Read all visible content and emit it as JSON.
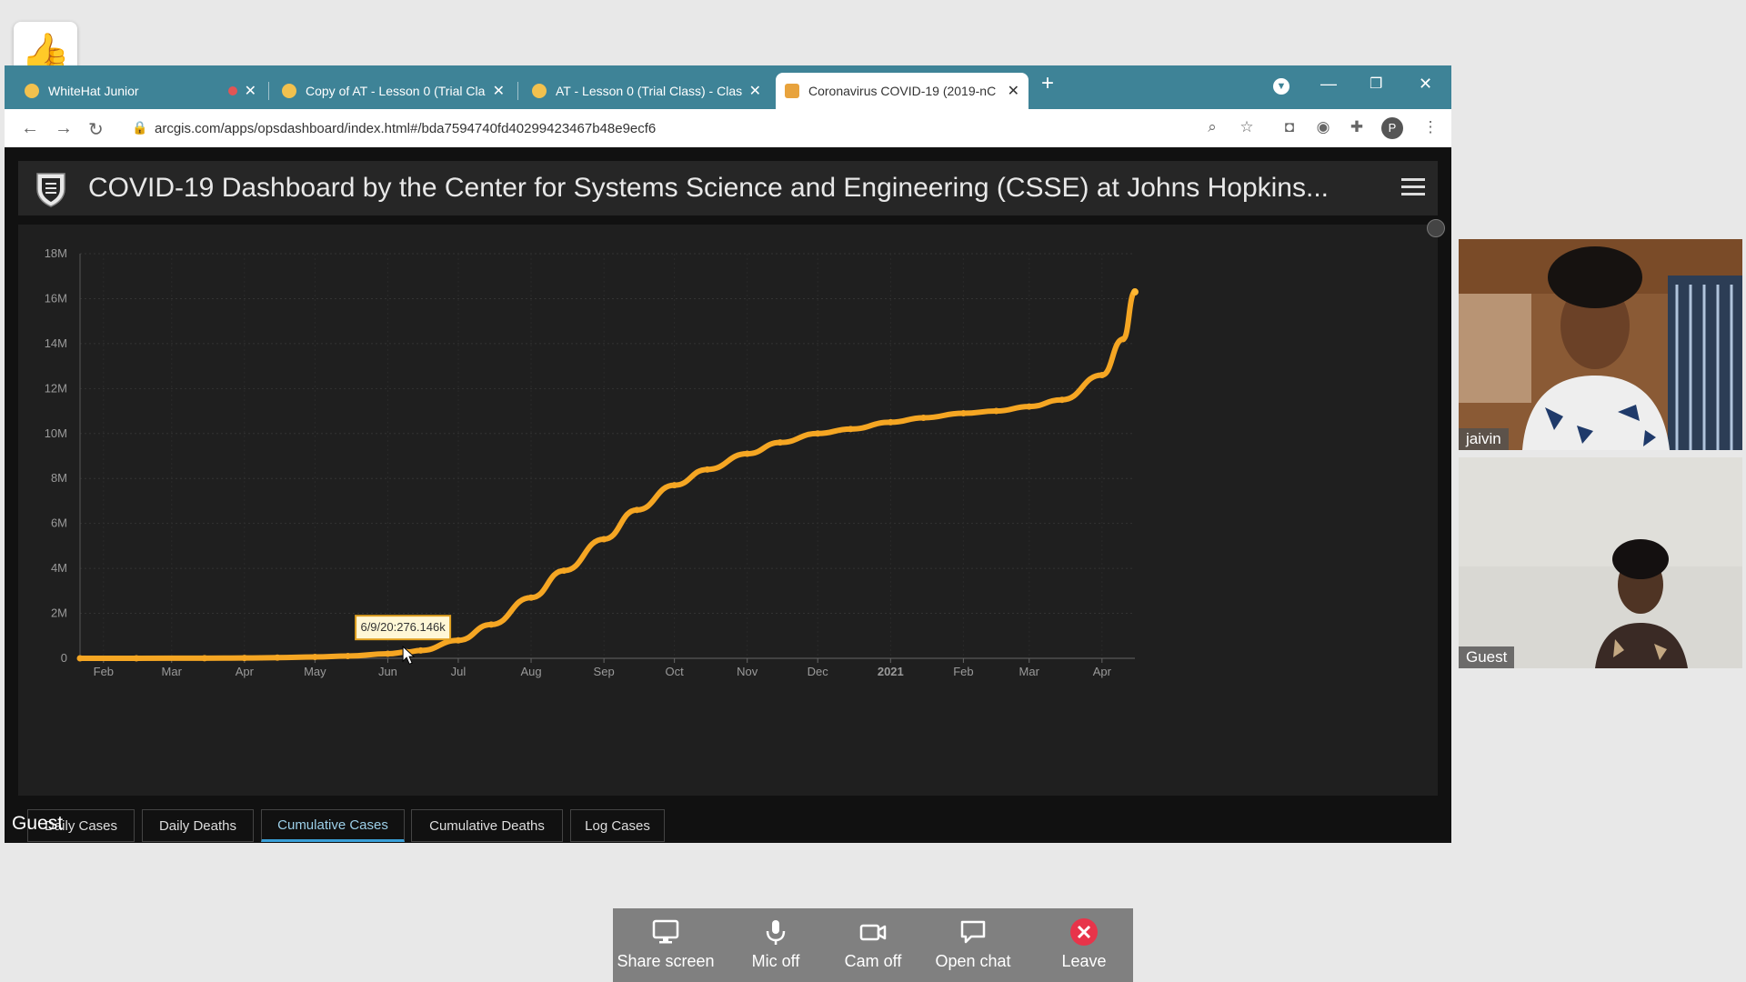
{
  "browser": {
    "tabs": [
      {
        "title": "WhiteHat Junior",
        "favicon_color": "#f2c14e"
      },
      {
        "title": "Copy of AT - Lesson 0 (Trial Class",
        "favicon_color": "#f2c14e"
      },
      {
        "title": "AT - Lesson 0 (Trial Class) - Class",
        "favicon_color": "#f2c14e"
      },
      {
        "title": "Coronavirus COVID-19 (2019-nC",
        "favicon_color": "#e8a33d"
      }
    ],
    "url": "arcgis.com/apps/opsdashboard/index.html#/bda7594740fd40299423467b48e9ecf6",
    "profile_initial": "P"
  },
  "dashboard": {
    "title": "COVID-19 Dashboard by the Center for Systems Science and Engineering (CSSE) at Johns Hopkins..."
  },
  "chart_tabs": [
    "Daily Cases",
    "Daily Deaths",
    "Cumulative Cases",
    "Cumulative Deaths",
    "Log Cases"
  ],
  "selected_chart_tab": "Cumulative Cases",
  "chart_data": {
    "type": "line",
    "title": "",
    "xlabel": "",
    "ylabel": "",
    "x_tick_labels": [
      "Feb",
      "Mar",
      "Apr",
      "May",
      "Jun",
      "Jul",
      "Aug",
      "Sep",
      "Oct",
      "Nov",
      "Dec",
      "2021",
      "Feb",
      "Mar",
      "Apr"
    ],
    "y_tick_labels": [
      "0",
      "2M",
      "4M",
      "6M",
      "8M",
      "10M",
      "12M",
      "14M",
      "16M",
      "18M"
    ],
    "ylim": [
      0,
      18000000
    ],
    "x_range": [
      "2020-01-22",
      "2021-04-15"
    ],
    "line_color": "#f5a623",
    "series": [
      {
        "x": [
          "2020-01-22",
          "2020-02-15",
          "2020-03-15",
          "2020-04-01",
          "2020-04-15",
          "2020-05-01",
          "2020-05-15",
          "2020-06-01",
          "2020-06-09",
          "2020-06-15",
          "2020-07-01",
          "2020-07-15",
          "2020-08-01",
          "2020-08-15",
          "2020-09-01",
          "2020-09-15",
          "2020-10-01",
          "2020-10-15",
          "2020-11-01",
          "2020-11-15",
          "2020-12-01",
          "2020-12-15",
          "2021-01-01",
          "2021-01-15",
          "2021-02-01",
          "2021-02-15",
          "2021-03-01",
          "2021-03-15",
          "2021-04-01",
          "2021-04-10",
          "2021-04-15"
        ],
        "y": [
          0,
          1000,
          5000,
          15000,
          30000,
          60000,
          100000,
          200000,
          276146,
          350000,
          800000,
          1500000,
          2700000,
          3900000,
          5300000,
          6600000,
          7700000,
          8400000,
          9100000,
          9600000,
          10000000,
          10200000,
          10500000,
          10700000,
          10900000,
          11000000,
          11200000,
          11500000,
          12600000,
          14200000,
          16300000
        ]
      }
    ],
    "tooltip": "6/9/20:276.146k"
  },
  "screen_share_owner": "Guest",
  "participants": [
    {
      "name": "jaivin"
    },
    {
      "name": "Guest"
    }
  ],
  "toolbar": {
    "share": "Share screen",
    "mic": "Mic off",
    "cam": "Cam off",
    "chat": "Open chat",
    "leave": "Leave"
  }
}
